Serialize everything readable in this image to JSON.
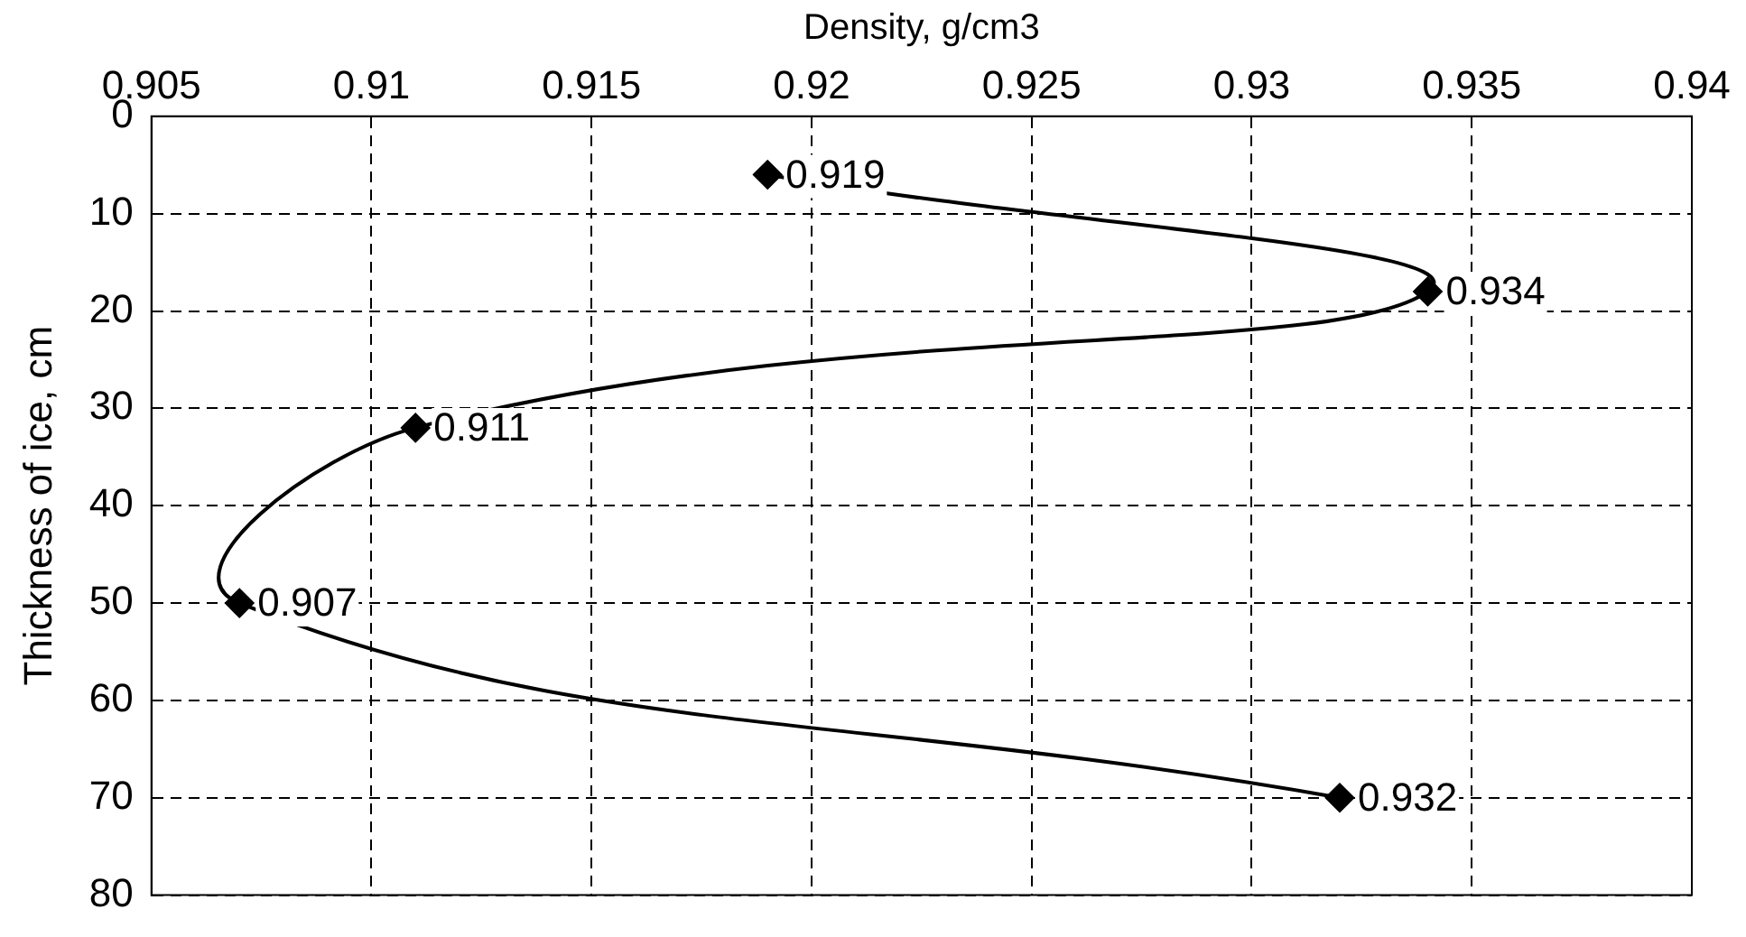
{
  "chart_data": {
    "type": "line",
    "xlabel": "Density, g/cm3",
    "ylabel": "Thickness of ice, cm",
    "series": [
      {
        "color": "#000000",
        "x": [
          0.919,
          0.934,
          0.911,
          0.907,
          0.932
        ],
        "values": [
          6,
          18,
          32,
          50,
          70
        ]
      }
    ],
    "annotations": [
      {
        "text": "0.919",
        "x": 0.919,
        "y": 6
      },
      {
        "text": "0.934",
        "x": 0.934,
        "y": 18
      },
      {
        "text": "0.911",
        "x": 0.911,
        "y": 32
      },
      {
        "text": "0.907",
        "x": 0.907,
        "y": 50
      },
      {
        "text": "0.932",
        "x": 0.932,
        "y": 70
      }
    ],
    "xlim": [
      0.905,
      0.94
    ],
    "xticks": [
      0.905,
      0.91,
      0.915,
      0.92,
      0.925,
      0.93,
      0.935,
      0.94
    ],
    "ylim": [
      80,
      0
    ],
    "yticks": [
      0,
      10,
      20,
      30,
      40,
      50,
      60,
      70,
      80
    ],
    "grid": true,
    "marker": "diamond",
    "line_style": "solid",
    "legend": false
  }
}
